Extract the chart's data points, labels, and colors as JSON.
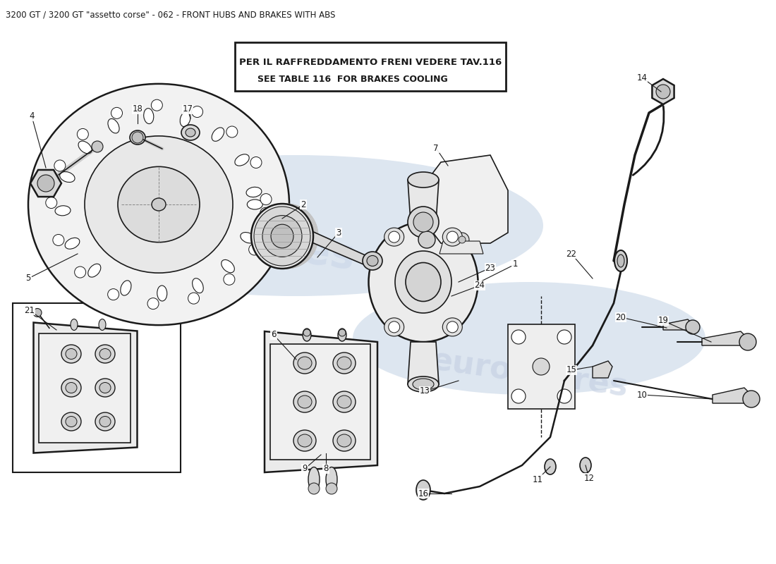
{
  "title_top": "3200 GT / 3200 GT \"assetto corse\" - 062 - FRONT HUBS AND BRAKES WITH ABS",
  "note_line1": "PER IL RAFFREDDAMENTO FRENI VEDERE TAV.116",
  "note_line2": "SEE TABLE 116  FOR BRAKES COOLING",
  "bg_color": "#ffffff",
  "dc": "#1a1a1a",
  "wc1": "#c8d4e8",
  "wc2": "#c0cce0",
  "title_fontsize": 8.5,
  "note_fontsize": 9.5,
  "label_fontsize": 8.5
}
